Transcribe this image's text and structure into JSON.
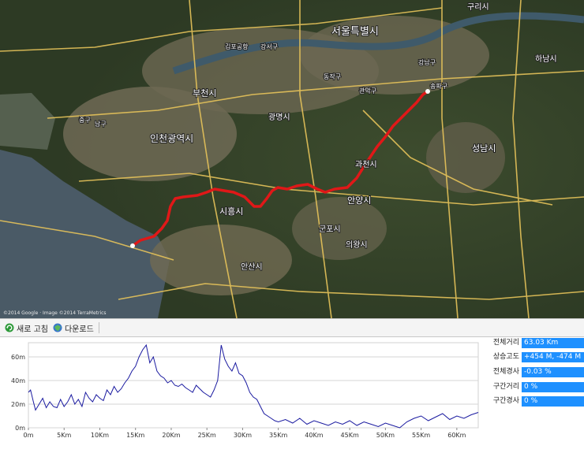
{
  "map": {
    "labels": [
      "서울특별시",
      "구리시",
      "하남시",
      "성남시",
      "과천시",
      "안양시",
      "군포시",
      "의왕시",
      "광명시",
      "부천시",
      "인천광역시",
      "시흥시",
      "안산시",
      "남구",
      "중구",
      "강서구",
      "김포공항",
      "관악구",
      "동작구",
      "송파구",
      "강남구"
    ],
    "copyright": "©2014 Google · Image ©2014 TerraMetrics"
  },
  "toolbar": {
    "refresh_label": "새로 고침",
    "download_label": "다운로드"
  },
  "stats": [
    {
      "label": "전체거리",
      "value": "63.03 Km"
    },
    {
      "label": "상승고도",
      "value": "+454 M, -474 M"
    },
    {
      "label": "전체경사",
      "value": "-0.03 %"
    },
    {
      "label": "구간거리",
      "value": "0 %"
    },
    {
      "label": "구간경사",
      "value": "0 %"
    }
  ],
  "chart_data": {
    "type": "line",
    "xlabel": "",
    "ylabel": "",
    "x_ticks": [
      "0m",
      "5Km",
      "10Km",
      "15Km",
      "20Km",
      "25Km",
      "30Km",
      "35Km",
      "40Km",
      "45Km",
      "50Km",
      "55Km",
      "60Km"
    ],
    "y_ticks": [
      "0m",
      "20m",
      "40m",
      "60m"
    ],
    "xlim": [
      0,
      63
    ],
    "ylim": [
      0,
      72
    ],
    "grid": true,
    "series": [
      {
        "color": "#1a1aa0",
        "x": [
          0,
          0.3,
          0.7,
          1,
          1.5,
          2,
          2.5,
          3,
          3.5,
          4,
          4.5,
          5,
          5.5,
          6,
          6.5,
          7,
          7.5,
          8,
          8.5,
          9,
          9.5,
          10,
          10.5,
          11,
          11.5,
          12,
          12.5,
          13,
          13.5,
          14,
          14.5,
          15,
          15.5,
          16,
          16.5,
          17,
          17.5,
          18,
          18.5,
          19,
          19.5,
          20,
          20.5,
          21,
          21.5,
          22,
          22.5,
          23,
          23.5,
          24,
          24.5,
          25,
          25.5,
          26,
          26.5,
          27,
          27.5,
          28,
          28.5,
          29,
          29.5,
          30,
          30.5,
          31,
          31.5,
          32,
          32.5,
          33,
          33.5,
          34,
          34.5,
          35,
          36,
          37,
          38,
          39,
          40,
          41,
          42,
          43,
          44,
          45,
          46,
          47,
          48,
          49,
          50,
          51,
          52,
          53,
          54,
          55,
          56,
          57,
          58,
          59,
          60,
          61,
          62,
          63
        ],
        "y": [
          30,
          32,
          22,
          15,
          20,
          25,
          17,
          22,
          18,
          17,
          24,
          18,
          22,
          28,
          20,
          24,
          18,
          30,
          25,
          22,
          28,
          25,
          23,
          32,
          28,
          35,
          30,
          33,
          38,
          42,
          48,
          52,
          60,
          66,
          70,
          55,
          60,
          48,
          44,
          42,
          38,
          40,
          36,
          35,
          37,
          34,
          32,
          30,
          36,
          33,
          30,
          28,
          26,
          32,
          40,
          70,
          58,
          52,
          48,
          55,
          46,
          44,
          38,
          30,
          26,
          24,
          18,
          12,
          10,
          8,
          6,
          5,
          7,
          4,
          8,
          3,
          6,
          4,
          2,
          5,
          3,
          6,
          2,
          5,
          3,
          1,
          4,
          2,
          0,
          5,
          8,
          10,
          6,
          9,
          12,
          7,
          10,
          8,
          11,
          13
        ]
      }
    ]
  }
}
